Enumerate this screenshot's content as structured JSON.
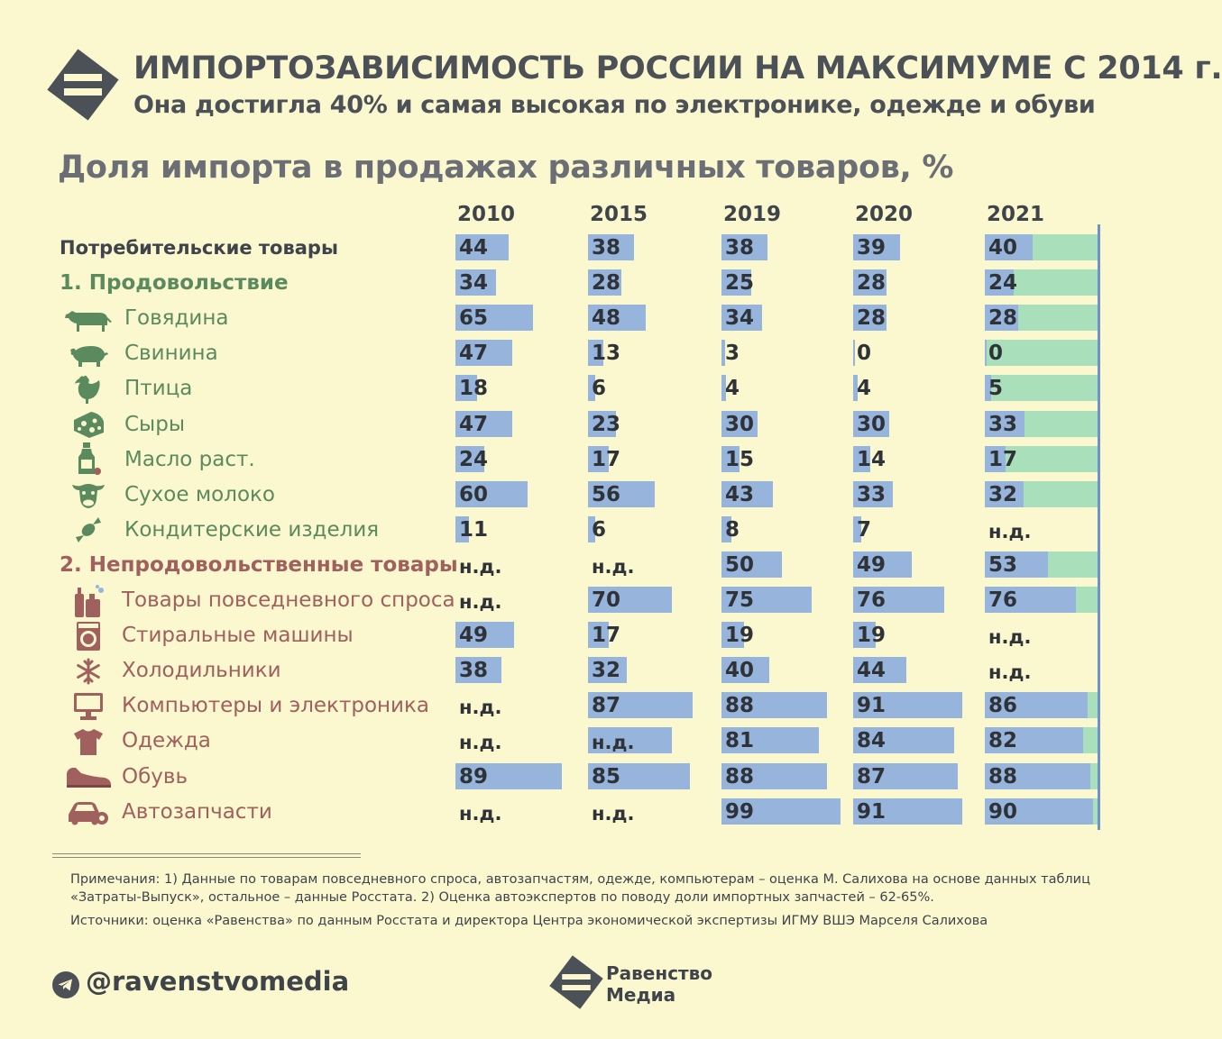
{
  "header": {
    "title": "ИМПОРТОЗАВИСИМОСТЬ РОССИИ НА МАКСИМУМЕ С 2014 г.",
    "subtitle": "Она достигла 40% и самая высокая по электронике, одежде и обуви"
  },
  "chart_data": {
    "type": "bar",
    "title": "Доля импорта в продажах различных товаров, %",
    "years": [
      "2010",
      "2015",
      "2019",
      "2020",
      "2021"
    ],
    "categories": [
      {
        "label": "Потребительские товары",
        "kind": "total",
        "icon": "",
        "values": [
          44,
          38,
          38,
          39,
          40
        ]
      },
      {
        "label": "1. Продовольствие",
        "kind": "food-header",
        "icon": "",
        "values": [
          34,
          28,
          25,
          28,
          24
        ]
      },
      {
        "label": "Говядина",
        "kind": "food",
        "icon": "cow-icon",
        "values": [
          65,
          48,
          34,
          28,
          28
        ]
      },
      {
        "label": "Свинина",
        "kind": "food",
        "icon": "pig-icon",
        "values": [
          47,
          13,
          3,
          0,
          0
        ]
      },
      {
        "label": "Птица",
        "kind": "food",
        "icon": "chicken-icon",
        "values": [
          18,
          6,
          4,
          4,
          5
        ]
      },
      {
        "label": "Сыры",
        "kind": "food",
        "icon": "cheese-icon",
        "values": [
          47,
          23,
          30,
          30,
          33
        ]
      },
      {
        "label": "Масло раст.",
        "kind": "food",
        "icon": "oil-bottle-icon",
        "values": [
          24,
          17,
          15,
          14,
          17
        ]
      },
      {
        "label": "Сухое молоко",
        "kind": "food",
        "icon": "cow-head-icon",
        "values": [
          60,
          56,
          43,
          33,
          32
        ]
      },
      {
        "label": "Кондитерские изделия",
        "kind": "food",
        "icon": "candy-icon",
        "values": [
          11,
          6,
          8,
          7,
          null
        ]
      },
      {
        "label": "2. Непродовольственные товары",
        "kind": "non-header",
        "icon": "",
        "values": [
          null,
          null,
          50,
          49,
          53
        ]
      },
      {
        "label": "Товары повседневного спроса",
        "kind": "non",
        "icon": "household-goods-icon",
        "values": [
          null,
          70,
          75,
          76,
          76
        ]
      },
      {
        "label": "Стиральные машины",
        "kind": "non",
        "icon": "washing-machine-icon",
        "values": [
          49,
          17,
          19,
          19,
          null
        ]
      },
      {
        "label": "Холодильники",
        "kind": "non",
        "icon": "snowflake-icon",
        "values": [
          38,
          32,
          40,
          44,
          null
        ]
      },
      {
        "label": "Компьютеры и электроника",
        "kind": "non",
        "icon": "computer-icon",
        "values": [
          null,
          87,
          88,
          91,
          86
        ]
      },
      {
        "label": "Одежда",
        "kind": "non",
        "icon": "tshirt-icon",
        "values": [
          null,
          null,
          81,
          84,
          82
        ]
      },
      {
        "label": "Обувь",
        "kind": "non",
        "icon": "shoe-icon",
        "values": [
          89,
          85,
          88,
          87,
          88
        ]
      },
      {
        "label": "Автозапчасти",
        "kind": "non",
        "icon": "car-gear-icon",
        "values": [
          null,
          null,
          99,
          91,
          90
        ]
      }
    ],
    "na_label": "н.д.",
    "bars_with_na": [
      {
        "row": 14,
        "col": 1,
        "value": 70
      }
    ],
    "xlim": [
      0,
      100
    ],
    "colors": {
      "bar": "#97b5dc",
      "remainder_2021": "#a9dfbb",
      "axis": "#6f93c9"
    }
  },
  "footer": {
    "notes": "Примечания: 1) Данные по товарам повседневного спроса, автозапчастям, одежде, компьютерам – оценка М. Салихова на основе данных таблиц «Затраты-Выпуск», остальное – данные Росстата. 2) Оценка автоэкспертов по поводу доли импортных запчастей – 62-65%.",
    "sources": "Источники: оценка «Равенства» по данным Росстата и директора Центра экономической экспертизы ИГМУ ВШЭ Марселя Салихова",
    "handle": "@ravenstvomedia",
    "brand_line1": "Равенство",
    "brand_line2": "Медиа"
  }
}
